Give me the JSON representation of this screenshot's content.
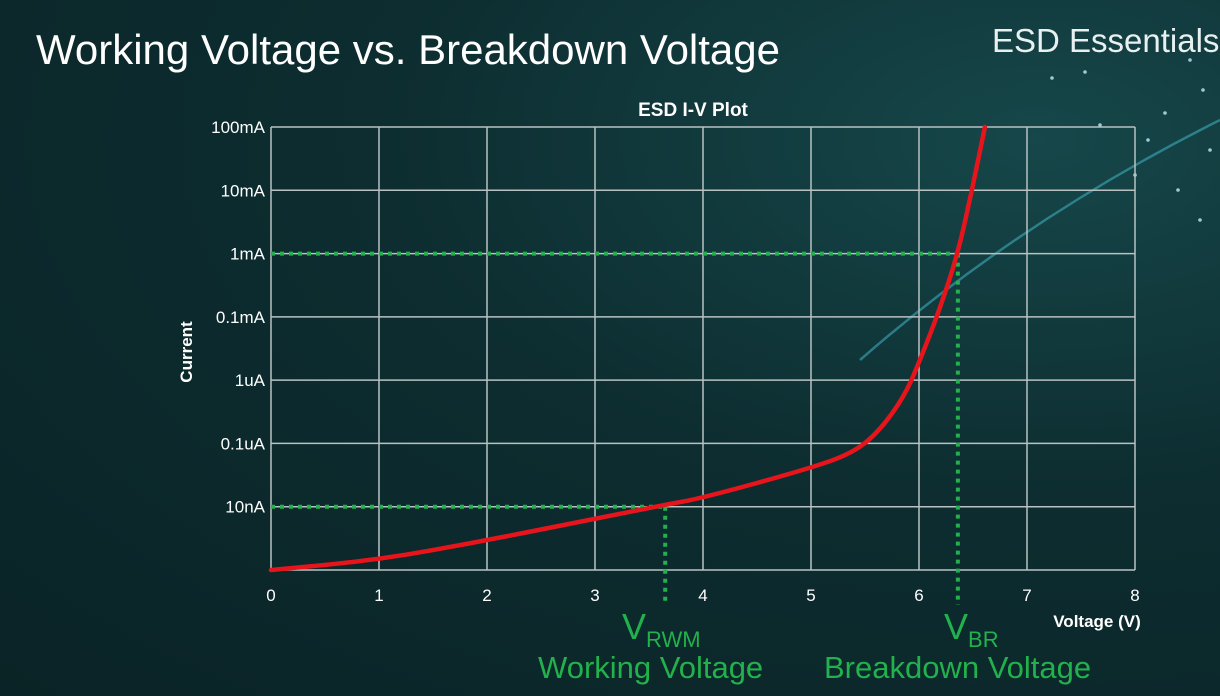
{
  "slide": {
    "title": "Working Voltage vs. Breakdown Voltage",
    "brand": "ESD Essentials"
  },
  "chart_data": {
    "type": "line",
    "title": "ESD I-V Plot",
    "xlabel": "Voltage (V)",
    "ylabel": "Current",
    "xlim": [
      0,
      8
    ],
    "x_ticks": [
      "0",
      "1",
      "2",
      "3",
      "4",
      "5",
      "6",
      "7",
      "8"
    ],
    "y_scale": "log",
    "y_ticks": [
      "",
      "10nA",
      "0.1uA",
      "1uA",
      "0.1mA",
      "1mA",
      "10mA",
      "100mA"
    ],
    "grid": true,
    "series": [
      {
        "color": "#e8141c",
        "points_voltage_vs_tick_level": [
          [
            0,
            0
          ],
          [
            1,
            0.16
          ],
          [
            2,
            0.47
          ],
          [
            3,
            0.81
          ],
          [
            3.65,
            1.03
          ],
          [
            4,
            1.14
          ],
          [
            5,
            1.61
          ],
          [
            5.4,
            1.86
          ],
          [
            5.64,
            2.21
          ],
          [
            5.87,
            2.76
          ],
          [
            6.01,
            3.32
          ],
          [
            6.19,
            4.11
          ],
          [
            6.36,
            5.0
          ],
          [
            6.49,
            6.0
          ],
          [
            6.61,
            7.0
          ]
        ]
      }
    ],
    "annotations": [
      {
        "voltage": 3.65,
        "current": "10nA",
        "symbol": "V",
        "subscript": "RWM",
        "label": "Working Voltage",
        "color": "#22b14c"
      },
      {
        "voltage": 6.36,
        "current": "1mA",
        "symbol": "V",
        "subscript": "BR",
        "label": "Breakdown Voltage",
        "color": "#22b14c"
      }
    ]
  }
}
